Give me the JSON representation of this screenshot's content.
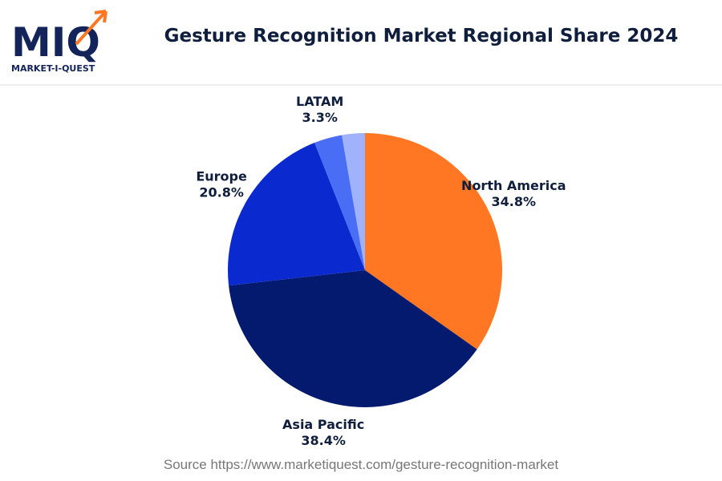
{
  "logo": {
    "mark": "MIQ",
    "name": "MARKET-I-QUEST"
  },
  "chart_data": {
    "type": "pie",
    "title": "Gesture Recognition Market Regional Share 2024",
    "categories": [
      "North America",
      "Asia Pacific",
      "Europe",
      "LATAM",
      null
    ],
    "values": [
      34.8,
      38.4,
      20.8,
      3.3,
      2.7
    ],
    "value_labels": [
      "34.8%",
      "38.4%",
      "20.8%",
      "3.3%",
      null
    ],
    "colors": [
      "#ff7722",
      "#041a6e",
      "#0a2ad0",
      "#4a6df5",
      "#9fb2fb"
    ],
    "source": "Source https://www.marketiquest.com/gesture-recognition-market"
  }
}
